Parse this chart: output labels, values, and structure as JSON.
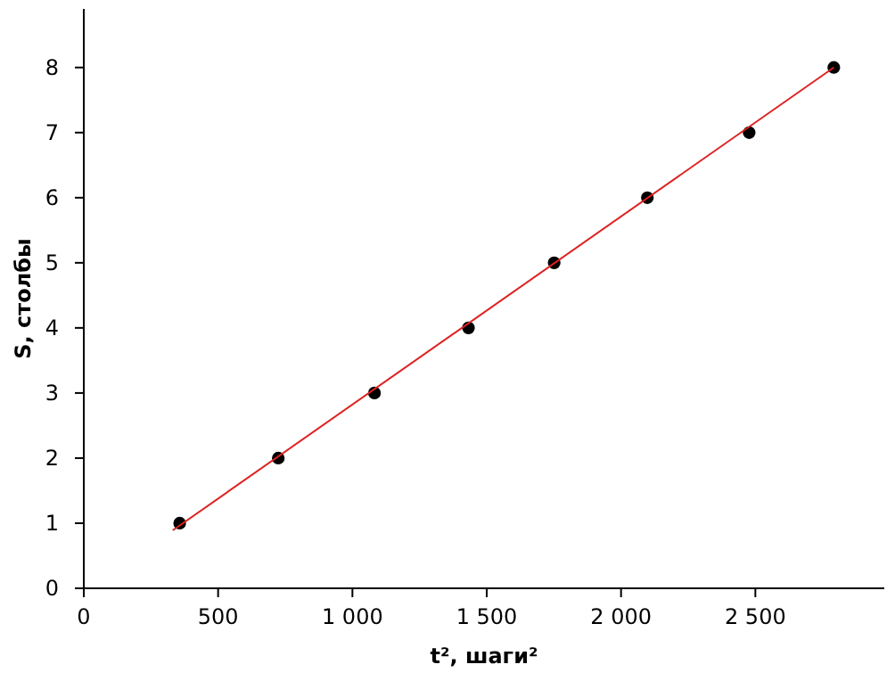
{
  "chart_data": {
    "type": "scatter",
    "xlabel": "t², шаги²",
    "ylabel": "S, столбы",
    "xlim": [
      0,
      2980
    ],
    "ylim": [
      0,
      8.9
    ],
    "xticks": [
      0,
      500,
      {
        "value": 1000,
        "label": "1 000"
      },
      {
        "value": 1500,
        "label": "1 500"
      },
      {
        "value": 2000,
        "label": "2 000"
      },
      {
        "value": 2500,
        "label": "2 500"
      }
    ],
    "yticks": [
      0,
      1,
      2,
      3,
      4,
      5,
      6,
      7,
      8
    ],
    "series": [
      {
        "marker": "circle",
        "color": "#000000",
        "x": [
          357,
          724,
          1082,
          1432,
          1751,
          2098,
          2477,
          2792
        ],
        "values": [
          1,
          2,
          3,
          4,
          5,
          6,
          7,
          8
        ]
      },
      {
        "type": "line",
        "color": "#dd2222",
        "x": [
          331,
          2792
        ],
        "values": [
          0.89,
          8
        ]
      }
    ]
  }
}
